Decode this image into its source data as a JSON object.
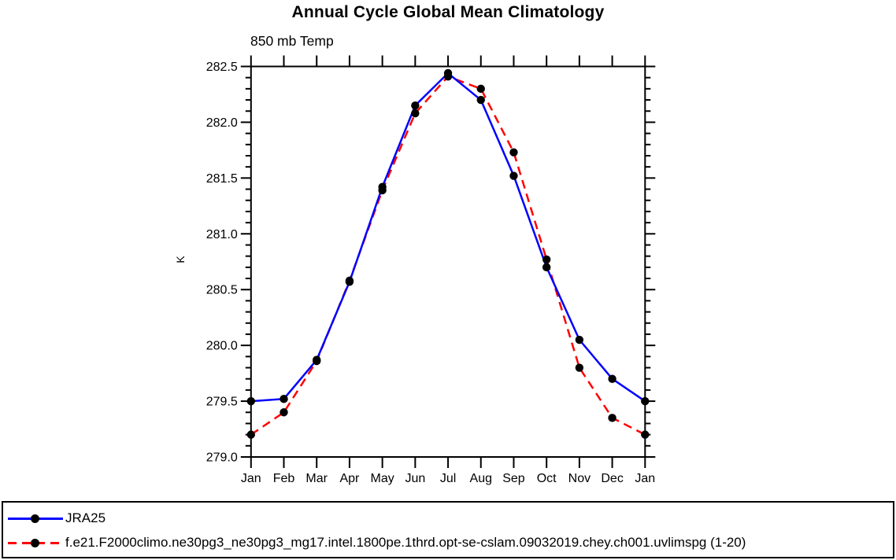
{
  "title": "Annual Cycle Global Mean Climatology",
  "subtitle": "850 mb Temp",
  "y_axis_title": "K",
  "colors": {
    "series1": "#0000ff",
    "series2": "#ff0000",
    "axis": "#000000",
    "marker": "#000000"
  },
  "chart_data": {
    "type": "line",
    "title": "Annual Cycle Global Mean Climatology",
    "subtitle": "850 mb Temp",
    "xlabel": "",
    "ylabel": "K",
    "categories": [
      "Jan",
      "Feb",
      "Mar",
      "Apr",
      "May",
      "Jun",
      "Jul",
      "Aug",
      "Sep",
      "Oct",
      "Nov",
      "Dec",
      "Jan"
    ],
    "ylim": [
      279.0,
      282.5
    ],
    "ytick_major_step": 0.5,
    "ytick_minor_step": 0.1,
    "ytick_labels": [
      "279.0",
      "279.5",
      "280.0",
      "280.5",
      "281.0",
      "281.5",
      "282.0",
      "282.5"
    ],
    "grid": false,
    "legend_position": "bottom-box-full-width",
    "marker": "filled-black-circle",
    "series": [
      {
        "name": "JRA25",
        "color": "#0000ff",
        "line_style": "solid",
        "values": [
          279.5,
          279.52,
          279.87,
          280.57,
          281.42,
          282.15,
          282.44,
          282.2,
          281.52,
          280.7,
          280.05,
          279.7,
          279.5
        ]
      },
      {
        "name": "f.e21.F2000climo.ne30pg3_ne30pg3_mg17.intel.1800pe.1thrd.opt-se-cslam.09032019.chey.ch001.uvlimspg (1-20)",
        "color": "#ff0000",
        "line_style": "dashed",
        "values": [
          279.2,
          279.4,
          279.86,
          280.58,
          281.39,
          282.08,
          282.41,
          282.3,
          281.73,
          280.77,
          279.8,
          279.35,
          279.2
        ]
      }
    ]
  }
}
